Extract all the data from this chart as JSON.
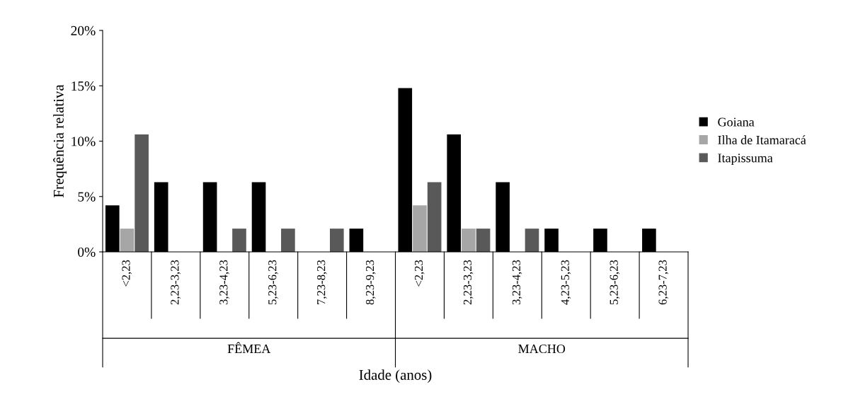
{
  "chart_data": {
    "type": "bar",
    "xlabel": "Idade (anos)",
    "ylabel": "Frequência relativa",
    "categories": [
      "<2,23",
      "2,23-3,23",
      "3,23-4,23",
      "5,23-6,23",
      "7,23-8,23",
      "8,23-9,23",
      "<2,23",
      "2,23-3,23",
      "3,23-4,23",
      "4,23-5,23",
      "5,23-6,23",
      "6,23-7,23"
    ],
    "series": [
      {
        "name": "Goiana",
        "color": "#000000",
        "values": [
          4.2,
          6.3,
          6.3,
          6.3,
          0,
          2.1,
          14.8,
          10.6,
          6.3,
          2.1,
          2.1,
          2.1
        ]
      },
      {
        "name": "Ilha de Itamaracá",
        "color": "#a6a6a6",
        "values": [
          2.1,
          0,
          0,
          0,
          0,
          0,
          4.2,
          2.1,
          0,
          0,
          0,
          0
        ]
      },
      {
        "name": "Itapissuma",
        "color": "#595959",
        "values": [
          10.6,
          0,
          2.1,
          2.1,
          2.1,
          0,
          6.3,
          2.1,
          2.1,
          0,
          0,
          0
        ]
      }
    ],
    "ylim": [
      0,
      20
    ],
    "yticks": [
      {
        "value": 0,
        "label": "0%"
      },
      {
        "value": 5,
        "label": "5%"
      },
      {
        "value": 10,
        "label": "10%"
      },
      {
        "value": 15,
        "label": "15%"
      },
      {
        "value": 20,
        "label": "20%"
      }
    ],
    "annotations": [
      "FÊMEA",
      "MACHO"
    ],
    "grid": false,
    "legend": "right"
  }
}
